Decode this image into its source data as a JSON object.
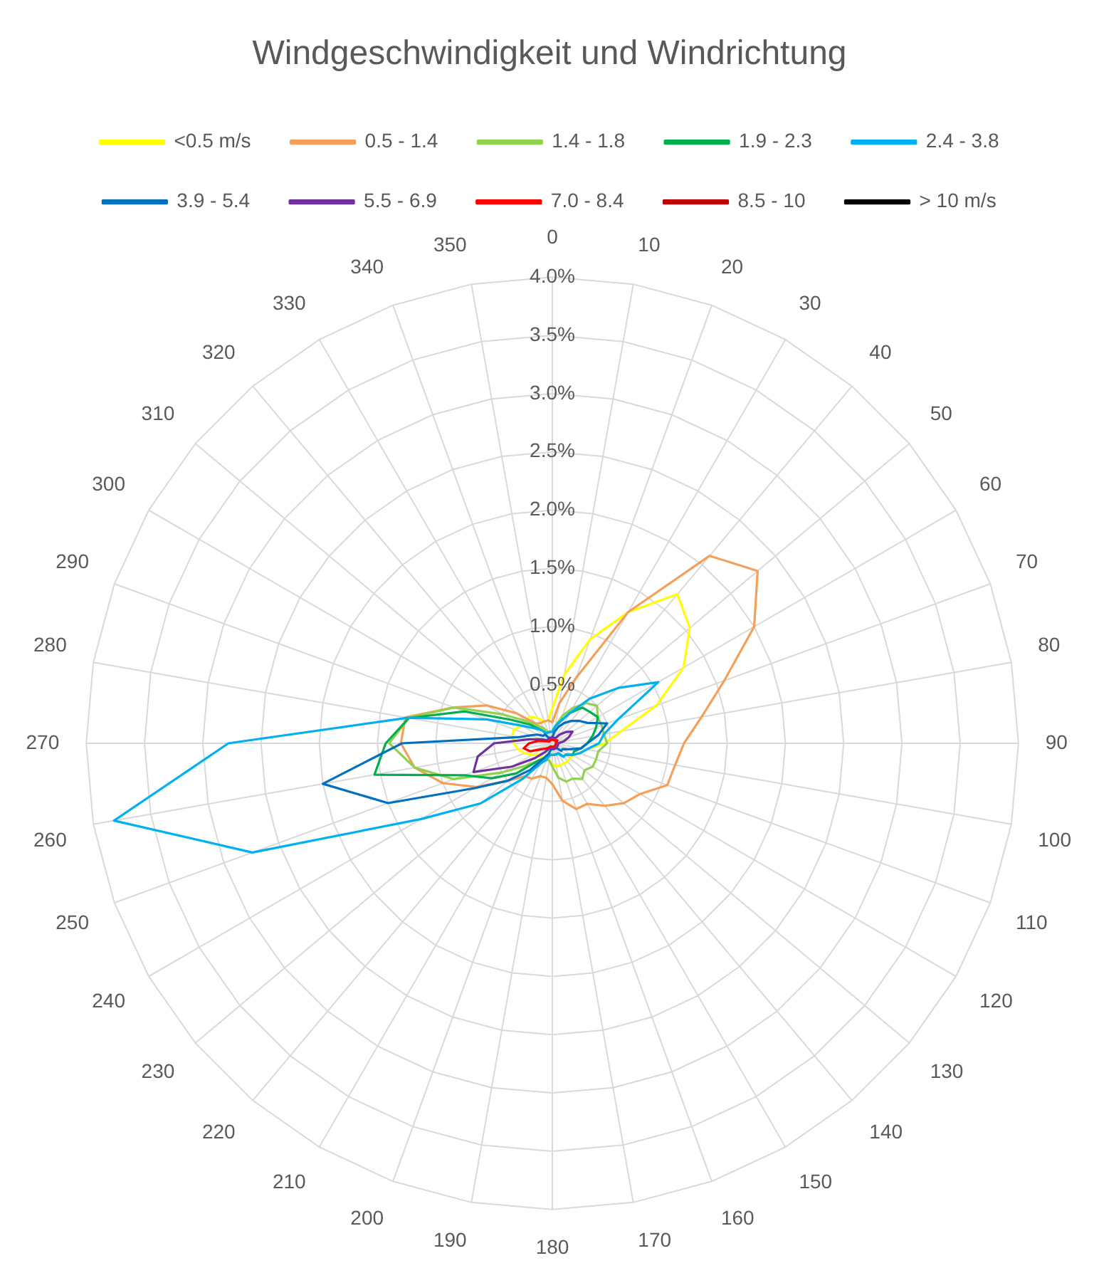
{
  "chart_data": {
    "type": "radar",
    "title": "Windgeschwindigkeit und Windrichtung",
    "categories": [
      "0",
      "10",
      "20",
      "30",
      "40",
      "50",
      "60",
      "70",
      "80",
      "90",
      "100",
      "110",
      "120",
      "130",
      "140",
      "150",
      "160",
      "170",
      "180",
      "190",
      "200",
      "210",
      "220",
      "230",
      "240",
      "250",
      "260",
      "270",
      "280",
      "290",
      "300",
      "310",
      "320",
      "330",
      "340",
      "350"
    ],
    "series": [
      {
        "name": "<0.5 m/s",
        "color": "#ffff00",
        "values": [
          0.3,
          0.6,
          0.95,
          1.3,
          1.67,
          1.54,
          1.3,
          0.95,
          0.6,
          0.45,
          0.3,
          0.25,
          0.2,
          0.2,
          0.2,
          0.2,
          0.2,
          0.2,
          0.18,
          0.15,
          0.15,
          0.15,
          0.15,
          0.15,
          0.2,
          0.25,
          0.3,
          0.33,
          0.35,
          0.35,
          0.3,
          0.3,
          0.3,
          0.25,
          0.2,
          0.2
        ]
      },
      {
        "name": "0.5 - 1.4",
        "color": "#f5a05a",
        "values": [
          0.18,
          0.35,
          0.6,
          1.3,
          2.1,
          2.3,
          2.0,
          1.57,
          1.3,
          1.13,
          1.07,
          1.05,
          0.87,
          0.8,
          0.7,
          0.6,
          0.6,
          0.5,
          0.35,
          0.3,
          0.3,
          0.35,
          0.37,
          0.5,
          0.75,
          1.0,
          1.2,
          1.3,
          1.28,
          0.9,
          0.65,
          0.4,
          0.22,
          0.2,
          0.2,
          0.2
        ]
      },
      {
        "name": "1.4 - 1.8",
        "color": "#92d050",
        "values": [
          0.1,
          0.15,
          0.25,
          0.35,
          0.45,
          0.5,
          0.45,
          0.45,
          0.45,
          0.47,
          0.4,
          0.4,
          0.4,
          0.36,
          0.4,
          0.35,
          0.35,
          0.3,
          0.2,
          0.15,
          0.15,
          0.15,
          0.2,
          0.3,
          0.5,
          0.9,
          1.2,
          1.4,
          1.25,
          0.9,
          0.5,
          0.3,
          0.2,
          0.15,
          0.1,
          0.1
        ]
      },
      {
        "name": "1.9 - 2.3",
        "color": "#00b050",
        "values": [
          0.1,
          0.15,
          0.2,
          0.3,
          0.4,
          0.42,
          0.45,
          0.4,
          0.35,
          0.3,
          0.25,
          0.2,
          0.2,
          0.15,
          0.15,
          0.1,
          0.1,
          0.1,
          0.1,
          0.1,
          0.1,
          0.15,
          0.2,
          0.4,
          0.6,
          0.8,
          1.55,
          1.43,
          1.25,
          0.8,
          0.4,
          0.25,
          0.15,
          0.1,
          0.1,
          0.1
        ]
      },
      {
        "name": "2.4 - 3.8",
        "color": "#00b0f0",
        "values": [
          0.1,
          0.15,
          0.2,
          0.3,
          0.5,
          0.74,
          1.05,
          0.6,
          0.45,
          0.4,
          0.3,
          0.25,
          0.2,
          0.15,
          0.15,
          0.1,
          0.1,
          0.1,
          0.1,
          0.1,
          0.15,
          0.2,
          0.4,
          0.8,
          1.3,
          2.74,
          3.82,
          2.78,
          1.26,
          0.6,
          0.3,
          0.2,
          0.15,
          0.1,
          0.1,
          0.1
        ]
      },
      {
        "name": "3.9 - 5.4",
        "color": "#0070c0",
        "values": [
          0.05,
          0.1,
          0.15,
          0.2,
          0.25,
          0.3,
          0.35,
          0.5,
          0.4,
          0.3,
          0.25,
          0.15,
          0.1,
          0.1,
          0.05,
          0.05,
          0.05,
          0.05,
          0.05,
          0.05,
          0.1,
          0.15,
          0.3,
          0.5,
          0.77,
          1.5,
          2.0,
          1.29,
          0.3,
          0.2,
          0.15,
          0.1,
          0.1,
          0.05,
          0.05,
          0.05
        ]
      },
      {
        "name": "5.5 - 6.9",
        "color": "#7030a0",
        "values": [
          0.05,
          0.05,
          0.05,
          0.05,
          0.1,
          0.15,
          0.2,
          0.15,
          0.1,
          0.05,
          0.05,
          0.05,
          0.05,
          0.05,
          0.05,
          0.05,
          0.05,
          0.05,
          0.05,
          0.05,
          0.05,
          0.05,
          0.1,
          0.2,
          0.4,
          0.72,
          0.65,
          0.5,
          0.2,
          0.1,
          0.05,
          0.05,
          0.05,
          0.05,
          0.05,
          0.05
        ]
      },
      {
        "name": "7.0 - 8.4",
        "color": "#ff0000",
        "values": [
          0.03,
          0.03,
          0.03,
          0.03,
          0.03,
          0.04,
          0.05,
          0.04,
          0.03,
          0.03,
          0.03,
          0.03,
          0.03,
          0.03,
          0.03,
          0.03,
          0.03,
          0.03,
          0.03,
          0.03,
          0.03,
          0.03,
          0.05,
          0.07,
          0.1,
          0.2,
          0.25,
          0.2,
          0.12,
          0.05,
          0.03,
          0.03,
          0.03,
          0.03,
          0.03,
          0.03
        ]
      },
      {
        "name": "8.5 - 10",
        "color": "#c00000",
        "values": [
          null,
          null,
          null,
          null,
          null,
          null,
          null,
          null,
          null,
          null,
          null,
          null,
          null,
          null,
          null,
          null,
          null,
          null,
          null,
          null,
          null,
          null,
          null,
          null,
          null,
          null,
          null,
          null,
          null,
          null,
          null,
          null,
          null,
          null,
          null,
          null
        ]
      },
      {
        "name": "> 10 m/s",
        "color": "#000000",
        "values": [
          null,
          null,
          null,
          null,
          null,
          null,
          null,
          null,
          null,
          null,
          null,
          null,
          null,
          null,
          null,
          null,
          null,
          null,
          null,
          null,
          null,
          null,
          null,
          null,
          null,
          null,
          null,
          null,
          null,
          null,
          null,
          null,
          null,
          null,
          null,
          null
        ]
      }
    ],
    "ylim": [
      0,
      4
    ],
    "yticks": [
      {
        "value": 0.5,
        "label": "0.5%"
      },
      {
        "value": 1,
        "label": "1.0%"
      },
      {
        "value": 1.5,
        "label": "1.5%"
      },
      {
        "value": 2,
        "label": "2.0%"
      },
      {
        "value": 2.5,
        "label": "2.5%"
      },
      {
        "value": 3,
        "label": "3.0%"
      },
      {
        "value": 3.5,
        "label": "3.5%"
      },
      {
        "value": 4,
        "label": "4.0%"
      }
    ],
    "grid": true,
    "legend": "top",
    "marker": "none",
    "line_style": "solid"
  }
}
